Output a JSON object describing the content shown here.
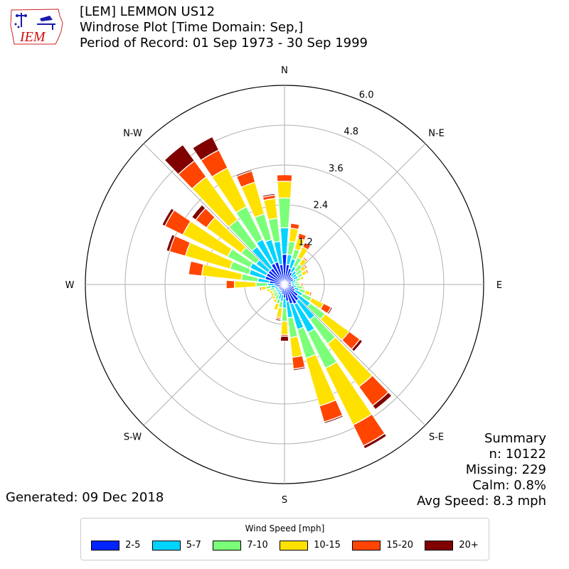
{
  "header": {
    "line1": "[LEM] LEMMON US12",
    "line2": "Windrose Plot [Time Domain: Sep,]",
    "line3": "Period of Record: 01 Sep 1973 - 30 Sep 1999"
  },
  "logo": {
    "text": "IEM"
  },
  "summary": {
    "title": "Summary",
    "n": "n: 10122",
    "missing": "Missing: 229",
    "calm": "Calm: 0.8%",
    "avg_speed": "Avg Speed: 8.3 mph"
  },
  "generated": "Generated: 09 Dec 2018",
  "legend": {
    "title": "Wind Speed [mph]",
    "items": [
      {
        "label": "2-5",
        "color": "#0023ff"
      },
      {
        "label": "5-7",
        "color": "#00d3ff"
      },
      {
        "label": "7-10",
        "color": "#7bff79"
      },
      {
        "label": "10-15",
        "color": "#ffe100"
      },
      {
        "label": "15-20",
        "color": "#ff4500"
      },
      {
        "label": "20+",
        "color": "#800000"
      }
    ]
  },
  "chart_data": {
    "type": "windrose",
    "rlim": [
      0,
      6.0
    ],
    "rticks": [
      1.2,
      2.4,
      3.6,
      4.8,
      6.0
    ],
    "rtick_labels": [
      "1.2",
      "2.4",
      "3.6",
      "4.8",
      "6.0"
    ],
    "direction_labels": [
      "N",
      "N-E",
      "E",
      "S-E",
      "S",
      "S-W",
      "W",
      "N-W"
    ],
    "direction_label_angles": [
      0,
      45,
      90,
      135,
      180,
      225,
      270,
      315
    ],
    "grid": true,
    "unit": "%",
    "bins": [
      "2-5",
      "5-7",
      "7-10",
      "10-15",
      "15-20",
      "20+"
    ],
    "directions": [
      0,
      10,
      20,
      30,
      40,
      50,
      60,
      70,
      80,
      90,
      100,
      110,
      120,
      130,
      140,
      150,
      160,
      170,
      180,
      190,
      200,
      210,
      220,
      230,
      240,
      250,
      260,
      270,
      280,
      290,
      300,
      310,
      320,
      330,
      340,
      350
    ],
    "cumulative": [
      [
        0.9,
        1.7,
        2.6,
        3.1,
        3.3,
        3.3
      ],
      [
        0.6,
        0.9,
        1.3,
        1.7,
        1.85,
        1.85
      ],
      [
        0.5,
        0.8,
        1.1,
        1.45,
        1.6,
        1.6
      ],
      [
        0.4,
        0.6,
        0.9,
        1.25,
        1.4,
        1.42
      ],
      [
        0.3,
        0.5,
        0.75,
        0.95,
        1.0,
        1.0
      ],
      [
        0.3,
        0.45,
        0.65,
        0.8,
        0.85,
        0.85
      ],
      [
        0.3,
        0.45,
        0.6,
        0.75,
        0.8,
        0.8
      ],
      [
        0.2,
        0.35,
        0.5,
        0.6,
        0.62,
        0.62
      ],
      [
        0.2,
        0.3,
        0.4,
        0.45,
        0.45,
        0.45
      ],
      [
        0.2,
        0.3,
        0.45,
        0.5,
        0.55,
        0.55
      ],
      [
        0.2,
        0.35,
        0.55,
        0.6,
        0.62,
        0.62
      ],
      [
        0.3,
        0.45,
        0.65,
        0.8,
        0.85,
        0.85
      ],
      [
        0.35,
        0.6,
        0.9,
        1.3,
        1.55,
        1.6
      ],
      [
        0.5,
        0.95,
        1.5,
        2.4,
        2.8,
        2.9
      ],
      [
        0.6,
        1.3,
        2.2,
        3.8,
        4.5,
        4.65
      ],
      [
        0.65,
        1.6,
        2.8,
        4.7,
        5.4,
        5.5
      ],
      [
        0.6,
        1.4,
        2.3,
        3.8,
        4.3,
        4.35
      ],
      [
        0.5,
        1.0,
        1.6,
        2.2,
        2.55,
        2.6
      ],
      [
        0.4,
        0.7,
        1.1,
        1.5,
        1.55,
        1.7
      ],
      [
        0.3,
        0.5,
        0.7,
        1.0,
        1.05,
        1.1
      ],
      [
        0.25,
        0.45,
        0.6,
        0.8,
        0.82,
        0.85
      ],
      [
        0.2,
        0.35,
        0.5,
        0.6,
        0.62,
        0.62
      ],
      [
        0.2,
        0.3,
        0.45,
        0.55,
        0.55,
        0.55
      ],
      [
        0.2,
        0.3,
        0.4,
        0.5,
        0.5,
        0.5
      ],
      [
        0.2,
        0.3,
        0.4,
        0.5,
        0.5,
        0.5
      ],
      [
        0.2,
        0.3,
        0.45,
        0.55,
        0.58,
        0.58
      ],
      [
        0.25,
        0.4,
        0.55,
        0.7,
        0.75,
        0.75
      ],
      [
        0.3,
        0.5,
        0.85,
        1.5,
        1.75,
        1.75
      ],
      [
        0.45,
        0.8,
        1.3,
        2.5,
        2.9,
        2.9
      ],
      [
        0.6,
        1.1,
        1.7,
        3.1,
        3.6,
        3.7
      ],
      [
        0.6,
        1.15,
        1.9,
        3.4,
        4.0,
        4.1
      ],
      [
        0.6,
        1.05,
        1.6,
        2.9,
        3.3,
        3.45
      ],
      [
        0.6,
        1.4,
        2.4,
        4.0,
        4.6,
        5.2
      ],
      [
        0.7,
        1.5,
        2.6,
        3.9,
        4.5,
        4.95
      ],
      [
        0.7,
        1.4,
        2.2,
        3.2,
        3.55,
        3.6
      ],
      [
        0.6,
        1.3,
        2.0,
        2.6,
        2.7,
        2.75
      ]
    ]
  }
}
